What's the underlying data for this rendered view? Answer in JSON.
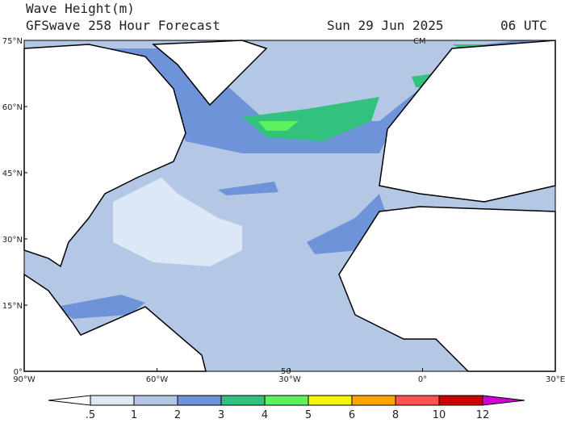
{
  "header": {
    "title": "Wave Height(m)",
    "subtitle": "GFSwave 258 Hour Forecast",
    "date": "Sun 29 Jun 2025",
    "time": "06 UTC"
  },
  "map": {
    "lat_labels": [
      "75°N",
      "60°N",
      "45°N",
      "30°N",
      "15°N",
      "0°"
    ],
    "lon_labels": [
      "90°W",
      "60°W",
      "30°W",
      "0°",
      "30°E"
    ],
    "contour_labels": [
      "CM",
      "50"
    ]
  },
  "colorbar": {
    "levels": [
      {
        "value": 0.5,
        "label": ".5"
      },
      1,
      2,
      3,
      4,
      5,
      6,
      8,
      10,
      12
    ],
    "colors": [
      "#ffffff",
      "#dce8f5",
      "#b4c8e6",
      "#6f93d8",
      "#33c27d",
      "#5ef15e",
      "#f5f500",
      "#ffa500",
      "#ff5050",
      "#cc0000",
      "#d400d4"
    ]
  }
}
